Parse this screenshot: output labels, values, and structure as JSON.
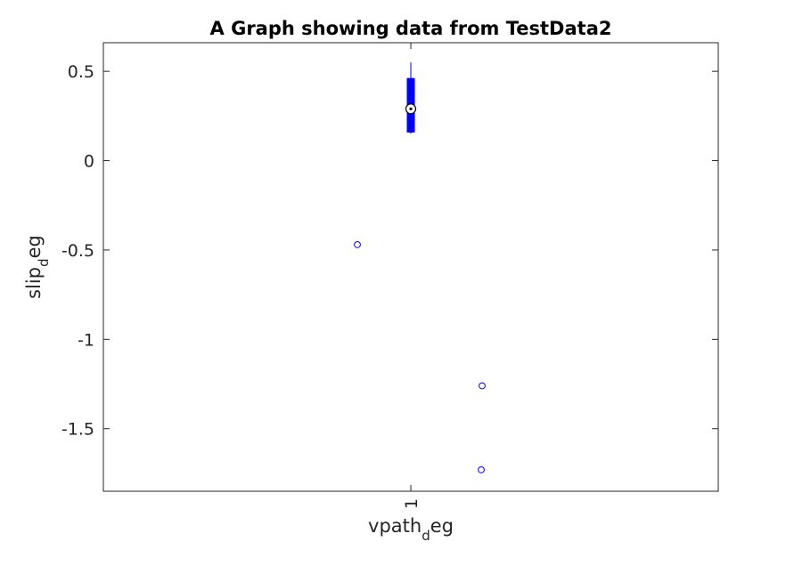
{
  "chart_data": {
    "type": "boxplot",
    "title": "A Graph showing data from TestData2",
    "xlabel": {
      "main": "vpath",
      "sub": "d",
      "tail": "eg"
    },
    "ylabel": {
      "main": "slip",
      "sub": "d",
      "tail": "eg"
    },
    "categories": [
      "1"
    ],
    "ylim": [
      -1.85,
      0.66
    ],
    "yticks": [
      {
        "value": 0.5,
        "label": "0.5"
      },
      {
        "value": 0,
        "label": "0"
      },
      {
        "value": -0.5,
        "label": "-0.5"
      },
      {
        "value": -1,
        "label": "-1"
      },
      {
        "value": -1.5,
        "label": "-1.5"
      }
    ],
    "box": {
      "category": "1",
      "whisker_low": 0.15,
      "q1": 0.16,
      "median": 0.29,
      "q3": 0.46,
      "whisker_high": 0.55,
      "outliers": [
        -0.47,
        -1.26,
        -1.73
      ]
    },
    "box_color": "#0000ff",
    "outlier_color": "#0000ff",
    "grid": false,
    "legend": "none"
  }
}
